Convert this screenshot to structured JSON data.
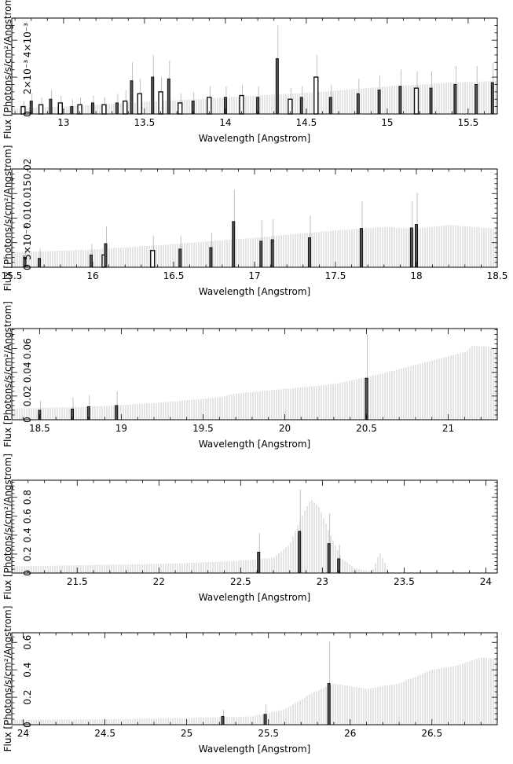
{
  "chart_data": [
    {
      "type": "bar",
      "xlabel": "Wavelength [Angstrom]",
      "ylabel": "Flux [Photons/s/cm²/Angstrom]",
      "xlim": [
        12.68,
        15.68
      ],
      "ylim": [
        0,
        0.0052
      ],
      "xticks": [
        13,
        13.5,
        14,
        14.5,
        15,
        15.5
      ],
      "yticks": [
        0,
        0.002,
        0.004
      ],
      "ytick_labels": [
        "0",
        "2×10⁻³",
        "4×10⁻³"
      ],
      "model": [
        [
          12.68,
          0.0003
        ],
        [
          13.0,
          0.0004
        ],
        [
          13.4,
          0.0006
        ],
        [
          13.8,
          0.0008
        ],
        [
          14.2,
          0.001
        ],
        [
          14.6,
          0.0012
        ],
        [
          15.0,
          0.0015
        ],
        [
          15.4,
          0.0017
        ],
        [
          15.68,
          0.0018
        ]
      ],
      "points": [
        {
          "x": 12.75,
          "y": 0.0004,
          "err": 0.0003,
          "open": true
        },
        {
          "x": 12.8,
          "y": 0.0007,
          "err": 0.0004,
          "open": false
        },
        {
          "x": 12.86,
          "y": 0.0005,
          "err": 0.0004,
          "open": true
        },
        {
          "x": 12.92,
          "y": 0.0008,
          "err": 0.0005,
          "open": false
        },
        {
          "x": 12.98,
          "y": 0.0006,
          "err": 0.0004,
          "open": true
        },
        {
          "x": 13.05,
          "y": 0.0004,
          "err": 0.0004,
          "open": false
        },
        {
          "x": 13.1,
          "y": 0.0005,
          "err": 0.0004,
          "open": true
        },
        {
          "x": 13.18,
          "y": 0.0006,
          "err": 0.0004,
          "open": false
        },
        {
          "x": 13.25,
          "y": 0.0005,
          "err": 0.0004,
          "open": true
        },
        {
          "x": 13.33,
          "y": 0.0006,
          "err": 0.0005,
          "open": false
        },
        {
          "x": 13.38,
          "y": 0.0007,
          "err": 0.0006,
          "open": true
        },
        {
          "x": 13.42,
          "y": 0.0018,
          "err": 0.001,
          "open": false
        },
        {
          "x": 13.47,
          "y": 0.0011,
          "err": 0.0008,
          "open": true
        },
        {
          "x": 13.55,
          "y": 0.002,
          "err": 0.0012,
          "open": false
        },
        {
          "x": 13.6,
          "y": 0.0012,
          "err": 0.0008,
          "open": true
        },
        {
          "x": 13.65,
          "y": 0.0019,
          "err": 0.001,
          "open": false
        },
        {
          "x": 13.72,
          "y": 0.0006,
          "err": 0.0005,
          "open": true
        },
        {
          "x": 13.8,
          "y": 0.0007,
          "err": 0.0005,
          "open": false
        },
        {
          "x": 13.9,
          "y": 0.0009,
          "err": 0.0006,
          "open": true
        },
        {
          "x": 14.0,
          "y": 0.0009,
          "err": 0.0006,
          "open": false
        },
        {
          "x": 14.1,
          "y": 0.001,
          "err": 0.0006,
          "open": true
        },
        {
          "x": 14.2,
          "y": 0.0009,
          "err": 0.0006,
          "open": false
        },
        {
          "x": 14.32,
          "y": 0.003,
          "err": 0.0018,
          "open": false
        },
        {
          "x": 14.4,
          "y": 0.0008,
          "err": 0.0006,
          "open": true
        },
        {
          "x": 14.47,
          "y": 0.0009,
          "err": 0.0006,
          "open": false
        },
        {
          "x": 14.56,
          "y": 0.002,
          "err": 0.0012,
          "open": true
        },
        {
          "x": 14.65,
          "y": 0.0009,
          "err": 0.0007,
          "open": false
        },
        {
          "x": 14.82,
          "y": 0.0011,
          "err": 0.0008,
          "open": false
        },
        {
          "x": 14.95,
          "y": 0.0013,
          "err": 0.0008,
          "open": false
        },
        {
          "x": 15.08,
          "y": 0.0015,
          "err": 0.0009,
          "open": false
        },
        {
          "x": 15.18,
          "y": 0.0014,
          "err": 0.0009,
          "open": true
        },
        {
          "x": 15.27,
          "y": 0.0014,
          "err": 0.0009,
          "open": false
        },
        {
          "x": 15.42,
          "y": 0.0016,
          "err": 0.001,
          "open": false
        },
        {
          "x": 15.55,
          "y": 0.0016,
          "err": 0.001,
          "open": false
        },
        {
          "x": 15.65,
          "y": 0.0017,
          "err": 0.0011,
          "open": false
        }
      ]
    },
    {
      "type": "bar",
      "xlabel": "Wavelength [Angstrom]",
      "ylabel": "Flux [Photons/s/cm²/Angstrom]",
      "xlim": [
        15.5,
        18.5
      ],
      "ylim": [
        0,
        0.02
      ],
      "xticks": [
        15.5,
        16,
        16.5,
        17,
        17.5,
        18,
        18.5
      ],
      "yticks": [
        0,
        0.005,
        0.01,
        0.015,
        0.02
      ],
      "ytick_labels": [
        "0",
        "5×10⁻³",
        "0.01",
        "0.015",
        "0.02"
      ],
      "model": [
        [
          15.5,
          0.003
        ],
        [
          16.0,
          0.0036
        ],
        [
          16.5,
          0.0047
        ],
        [
          17.0,
          0.006
        ],
        [
          17.5,
          0.0075
        ],
        [
          17.8,
          0.0082
        ],
        [
          18.0,
          0.0078
        ],
        [
          18.2,
          0.0086
        ],
        [
          18.5,
          0.0078
        ]
      ],
      "points": [
        {
          "x": 15.58,
          "y": 0.002,
          "err": 0.002,
          "open": false
        },
        {
          "x": 15.67,
          "y": 0.0018,
          "err": 0.002,
          "open": false
        },
        {
          "x": 15.99,
          "y": 0.0025,
          "err": 0.0022,
          "open": false
        },
        {
          "x": 16.07,
          "y": 0.0025,
          "err": 0.002,
          "open": true
        },
        {
          "x": 16.08,
          "y": 0.0048,
          "err": 0.0035,
          "open": false
        },
        {
          "x": 16.37,
          "y": 0.0034,
          "err": 0.003,
          "open": true
        },
        {
          "x": 16.54,
          "y": 0.0037,
          "err": 0.0028,
          "open": false
        },
        {
          "x": 16.73,
          "y": 0.004,
          "err": 0.003,
          "open": false
        },
        {
          "x": 16.87,
          "y": 0.0093,
          "err": 0.0065,
          "open": false
        },
        {
          "x": 17.04,
          "y": 0.0053,
          "err": 0.0042,
          "open": false
        },
        {
          "x": 17.11,
          "y": 0.0056,
          "err": 0.0042,
          "open": false
        },
        {
          "x": 17.34,
          "y": 0.006,
          "err": 0.0045,
          "open": false
        },
        {
          "x": 17.66,
          "y": 0.0079,
          "err": 0.0055,
          "open": false
        },
        {
          "x": 17.97,
          "y": 0.008,
          "err": 0.0055,
          "open": false
        },
        {
          "x": 18.0,
          "y": 0.0087,
          "err": 0.0065,
          "open": false
        }
      ]
    },
    {
      "type": "bar",
      "xlabel": "Wavelength [Angstrom]",
      "ylabel": "Flux [Photons/s/cm²/Angstrom]",
      "xlim": [
        18.33,
        21.3
      ],
      "ylim": [
        0,
        0.077
      ],
      "xticks": [
        18.5,
        19,
        19.5,
        20,
        20.5,
        21
      ],
      "yticks": [
        0,
        0.02,
        0.04,
        0.06
      ],
      "ytick_labels": [
        "0",
        "0.02",
        "0.04",
        "0.06"
      ],
      "model": [
        [
          18.33,
          0.0095
        ],
        [
          18.8,
          0.011
        ],
        [
          19.2,
          0.014
        ],
        [
          19.6,
          0.019
        ],
        [
          19.7,
          0.022
        ],
        [
          20.0,
          0.026
        ],
        [
          20.3,
          0.03
        ],
        [
          20.6,
          0.039
        ],
        [
          20.9,
          0.05
        ],
        [
          21.1,
          0.057
        ],
        [
          21.15,
          0.0625
        ],
        [
          21.3,
          0.061
        ]
      ],
      "points": [
        {
          "x": 18.5,
          "y": 0.008,
          "err": 0.008,
          "open": false
        },
        {
          "x": 18.7,
          "y": 0.009,
          "err": 0.01,
          "open": false
        },
        {
          "x": 18.8,
          "y": 0.011,
          "err": 0.01,
          "open": false
        },
        {
          "x": 18.97,
          "y": 0.012,
          "err": 0.012,
          "open": false
        },
        {
          "x": 20.5,
          "y": 0.035,
          "err": 0.037,
          "open": false
        }
      ]
    },
    {
      "type": "bar",
      "xlabel": "Wavelength [Angstrom]",
      "ylabel": "Flux [Photons/s/cm²/Angstrom]",
      "xlim": [
        21.1,
        24.07
      ],
      "ylim": [
        0,
        0.98
      ],
      "xticks": [
        21.5,
        22,
        22.5,
        23,
        23.5,
        24
      ],
      "yticks": [
        0,
        0.2,
        0.4,
        0.6,
        0.8
      ],
      "ytick_labels": [
        "0",
        "0.2",
        "0.4",
        "0.6",
        "0.8"
      ],
      "model": [
        [
          21.1,
          0.07
        ],
        [
          21.6,
          0.085
        ],
        [
          22.1,
          0.1
        ],
        [
          22.5,
          0.13
        ],
        [
          22.7,
          0.16
        ],
        [
          22.8,
          0.3
        ],
        [
          22.86,
          0.55
        ],
        [
          22.93,
          0.78
        ],
        [
          22.98,
          0.7
        ],
        [
          23.05,
          0.4
        ],
        [
          23.12,
          0.15
        ],
        [
          23.2,
          0.05
        ],
        [
          23.28,
          0.02
        ],
        [
          23.3,
          0.0
        ],
        [
          23.33,
          0.12
        ],
        [
          23.35,
          0.22
        ],
        [
          23.38,
          0.12
        ],
        [
          23.41,
          0.0
        ],
        [
          24.07,
          0.0
        ]
      ],
      "points": [
        {
          "x": 22.61,
          "y": 0.22,
          "err": 0.2,
          "open": false
        },
        {
          "x": 22.86,
          "y": 0.44,
          "err": 0.44,
          "open": false
        },
        {
          "x": 23.04,
          "y": 0.31,
          "err": 0.32,
          "open": false
        },
        {
          "x": 23.1,
          "y": 0.15,
          "err": 0.15,
          "open": false
        }
      ]
    },
    {
      "type": "bar",
      "xlabel": "Wavelength [Angstrom]",
      "ylabel": "Flux [Photons/s/cm²/Angstrom]",
      "xlim": [
        23.93,
        26.9
      ],
      "ylim": [
        0,
        0.67
      ],
      "xticks": [
        24,
        24.5,
        25,
        25.5,
        26,
        26.5
      ],
      "yticks": [
        0,
        0.2,
        0.4,
        0.6
      ],
      "ytick_labels": [
        "0",
        "0.2",
        "0.4",
        "0.6"
      ],
      "model": [
        [
          23.93,
          0.035
        ],
        [
          24.5,
          0.04
        ],
        [
          25.0,
          0.048
        ],
        [
          25.4,
          0.06
        ],
        [
          25.6,
          0.11
        ],
        [
          25.75,
          0.22
        ],
        [
          25.9,
          0.3
        ],
        [
          26.1,
          0.26
        ],
        [
          26.3,
          0.3
        ],
        [
          26.5,
          0.4
        ],
        [
          26.65,
          0.43
        ],
        [
          26.8,
          0.49
        ],
        [
          26.9,
          0.48
        ]
      ],
      "points": [
        {
          "x": 25.22,
          "y": 0.06,
          "err": 0.05,
          "open": false
        },
        {
          "x": 25.48,
          "y": 0.075,
          "err": 0.07,
          "open": false
        },
        {
          "x": 25.87,
          "y": 0.3,
          "err": 0.31,
          "open": false
        }
      ]
    }
  ]
}
